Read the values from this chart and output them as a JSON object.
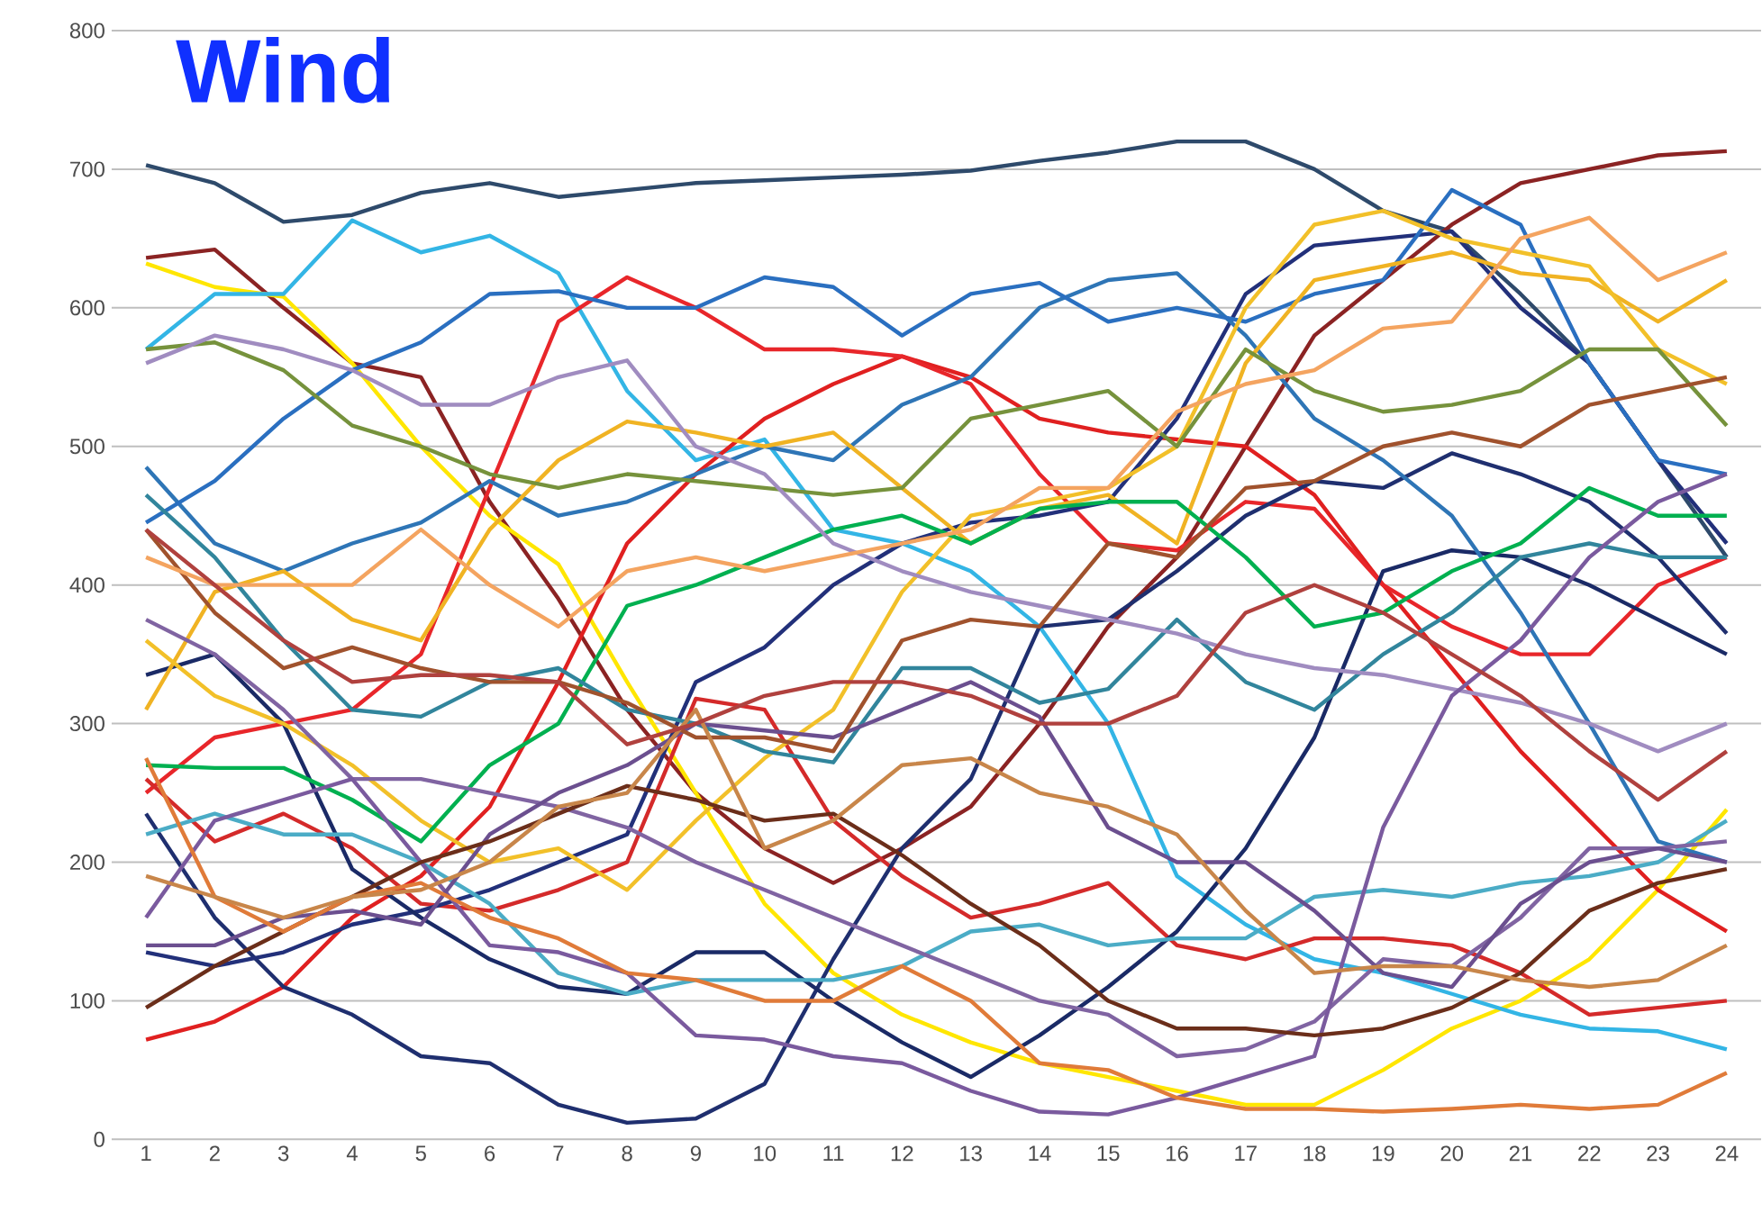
{
  "chart_data": {
    "type": "line",
    "title": "Wind",
    "x": [
      1,
      2,
      3,
      4,
      5,
      6,
      7,
      8,
      9,
      10,
      11,
      12,
      13,
      14,
      15,
      16,
      17,
      18,
      19,
      20,
      21,
      22,
      23,
      24
    ],
    "xlim": [
      0.5,
      24.5
    ],
    "xticks": [
      1,
      2,
      3,
      4,
      5,
      6,
      7,
      8,
      9,
      10,
      11,
      12,
      13,
      14,
      15,
      16,
      17,
      18,
      19,
      20,
      21,
      22,
      23,
      24
    ],
    "ylim": [
      0,
      800
    ],
    "yticks": [
      0,
      100,
      200,
      300,
      400,
      500,
      600,
      700,
      800
    ],
    "grid": "y",
    "series": [
      {
        "color": "#2e4a6b",
        "values": [
          703,
          690,
          662,
          667,
          683,
          690,
          680,
          685,
          690,
          692,
          694,
          696,
          699,
          706,
          712,
          720,
          720,
          700,
          670,
          655,
          610,
          560,
          490,
          420
        ]
      },
      {
        "color": "#8b2323",
        "values": [
          636,
          642,
          600,
          560,
          550,
          460,
          390,
          310,
          250,
          210,
          185,
          210,
          240,
          300,
          370,
          420,
          500,
          580,
          620,
          660,
          690,
          700,
          710,
          713
        ]
      },
      {
        "color": "#ffe600",
        "values": [
          632,
          615,
          608,
          560,
          500,
          450,
          415,
          330,
          250,
          170,
          120,
          90,
          70,
          55,
          45,
          35,
          25,
          25,
          50,
          80,
          100,
          130,
          180,
          238
        ]
      },
      {
        "color": "#33b5e5",
        "values": [
          570,
          610,
          610,
          663,
          640,
          652,
          625,
          540,
          490,
          505,
          440,
          430,
          410,
          370,
          300,
          190,
          155,
          130,
          120,
          105,
          90,
          80,
          78,
          65
        ]
      },
      {
        "color": "#e02020",
        "values": [
          72,
          85,
          110,
          160,
          190,
          240,
          330,
          430,
          480,
          520,
          545,
          565,
          550,
          520,
          510,
          505,
          500,
          465,
          400,
          340,
          280,
          230,
          180,
          150
        ]
      },
      {
        "color": "#e8262a",
        "values": [
          250,
          290,
          300,
          310,
          350,
          470,
          590,
          622,
          600,
          570,
          570,
          565,
          545,
          480,
          430,
          425,
          460,
          455,
          400,
          370,
          350,
          350,
          400,
          420
        ]
      },
      {
        "color": "#d42a2a",
        "values": [
          260,
          215,
          235,
          210,
          170,
          165,
          180,
          200,
          318,
          310,
          230,
          190,
          160,
          170,
          185,
          140,
          130,
          145,
          145,
          140,
          120,
          90,
          95,
          100
        ]
      },
      {
        "color": "#1f2f6f",
        "values": [
          235,
          160,
          110,
          90,
          60,
          55,
          25,
          12,
          15,
          40,
          130,
          210,
          260,
          370,
          375,
          410,
          450,
          475,
          470,
          495,
          480,
          460,
          420,
          365
        ]
      },
      {
        "color": "#22307a",
        "values": [
          135,
          125,
          135,
          155,
          165,
          180,
          200,
          220,
          330,
          355,
          400,
          430,
          445,
          450,
          460,
          520,
          610,
          645,
          650,
          655,
          600,
          560,
          490,
          430
        ]
      },
      {
        "color": "#1a2a66",
        "values": [
          335,
          350,
          300,
          195,
          160,
          130,
          110,
          105,
          135,
          135,
          100,
          70,
          45,
          75,
          110,
          150,
          210,
          290,
          410,
          425,
          420,
          400,
          375,
          350
        ]
      },
      {
        "color": "#2e75b6",
        "values": [
          485,
          430,
          410,
          430,
          445,
          475,
          450,
          460,
          480,
          500,
          490,
          530,
          550,
          600,
          620,
          625,
          580,
          520,
          490,
          450,
          380,
          300,
          215,
          200
        ]
      },
      {
        "color": "#2a6fc0",
        "values": [
          445,
          475,
          520,
          555,
          575,
          610,
          612,
          600,
          600,
          622,
          615,
          580,
          610,
          618,
          590,
          600,
          590,
          610,
          620,
          685,
          660,
          560,
          490,
          480
        ]
      },
      {
        "color": "#f0b323",
        "values": [
          310,
          395,
          410,
          375,
          360,
          440,
          490,
          518,
          510,
          500,
          510,
          470,
          430,
          455,
          465,
          430,
          560,
          620,
          630,
          640,
          625,
          620,
          590,
          620
        ]
      },
      {
        "color": "#f2c029",
        "values": [
          360,
          320,
          300,
          270,
          230,
          200,
          210,
          180,
          230,
          275,
          310,
          395,
          450,
          460,
          470,
          500,
          600,
          660,
          670,
          650,
          640,
          630,
          570,
          545
        ]
      },
      {
        "color": "#76923c",
        "values": [
          570,
          575,
          555,
          515,
          500,
          480,
          470,
          480,
          475,
          470,
          465,
          470,
          520,
          530,
          540,
          500,
          570,
          540,
          525,
          530,
          540,
          570,
          570,
          515
        ]
      },
      {
        "color": "#00b050",
        "values": [
          270,
          268,
          268,
          245,
          215,
          270,
          300,
          385,
          400,
          420,
          440,
          450,
          430,
          455,
          460,
          460,
          420,
          370,
          380,
          410,
          430,
          470,
          450,
          450
        ]
      },
      {
        "color": "#31859c",
        "values": [
          465,
          420,
          360,
          310,
          305,
          330,
          340,
          310,
          300,
          280,
          272,
          340,
          340,
          315,
          325,
          375,
          330,
          310,
          350,
          380,
          420,
          430,
          420,
          420
        ]
      },
      {
        "color": "#4bacc6",
        "values": [
          220,
          235,
          220,
          220,
          200,
          170,
          120,
          105,
          115,
          115,
          115,
          125,
          150,
          155,
          140,
          145,
          145,
          175,
          180,
          175,
          185,
          190,
          200,
          230
        ]
      },
      {
        "color": "#a08cc0",
        "values": [
          560,
          580,
          570,
          555,
          530,
          530,
          550,
          562,
          500,
          480,
          430,
          410,
          395,
          385,
          375,
          365,
          350,
          340,
          335,
          325,
          315,
          300,
          280,
          300
        ]
      },
      {
        "color": "#8064a2",
        "values": [
          375,
          350,
          310,
          260,
          260,
          250,
          240,
          225,
          200,
          180,
          160,
          140,
          120,
          100,
          90,
          60,
          65,
          85,
          130,
          125,
          160,
          210,
          210,
          215
        ]
      },
      {
        "color": "#7a5a9e",
        "values": [
          160,
          230,
          245,
          260,
          200,
          140,
          135,
          120,
          75,
          72,
          60,
          55,
          35,
          20,
          18,
          30,
          45,
          60,
          225,
          320,
          360,
          420,
          460,
          480
        ]
      },
      {
        "color": "#6b4f8f",
        "values": [
          140,
          140,
          160,
          165,
          155,
          220,
          250,
          270,
          300,
          295,
          290,
          310,
          330,
          305,
          225,
          200,
          200,
          165,
          120,
          110,
          170,
          200,
          210,
          200
        ]
      },
      {
        "color": "#a0522d",
        "values": [
          440,
          380,
          340,
          355,
          340,
          330,
          330,
          315,
          290,
          290,
          280,
          360,
          375,
          370,
          430,
          420,
          470,
          475,
          500,
          510,
          500,
          530,
          540,
          550
        ]
      },
      {
        "color": "#6b2e1a",
        "values": [
          95,
          125,
          150,
          175,
          200,
          215,
          235,
          255,
          245,
          230,
          235,
          205,
          170,
          140,
          100,
          80,
          80,
          75,
          80,
          95,
          120,
          165,
          185,
          195
        ]
      },
      {
        "color": "#e07b39",
        "values": [
          275,
          175,
          150,
          175,
          185,
          160,
          145,
          120,
          115,
          100,
          100,
          125,
          100,
          55,
          50,
          30,
          22,
          22,
          20,
          22,
          25,
          22,
          25,
          48
        ]
      },
      {
        "color": "#f4a460",
        "values": [
          420,
          400,
          400,
          400,
          440,
          400,
          370,
          410,
          420,
          410,
          420,
          430,
          440,
          470,
          470,
          525,
          545,
          555,
          585,
          590,
          650,
          665,
          620,
          640
        ]
      },
      {
        "color": "#c8864a",
        "values": [
          190,
          175,
          160,
          175,
          180,
          200,
          240,
          250,
          310,
          210,
          230,
          270,
          275,
          250,
          240,
          220,
          165,
          120,
          125,
          125,
          115,
          110,
          115,
          140
        ]
      },
      {
        "color": "#b0413e",
        "values": [
          440,
          400,
          360,
          330,
          335,
          335,
          330,
          285,
          300,
          320,
          330,
          330,
          320,
          300,
          300,
          320,
          380,
          400,
          380,
          350,
          320,
          280,
          245,
          280
        ]
      }
    ]
  }
}
